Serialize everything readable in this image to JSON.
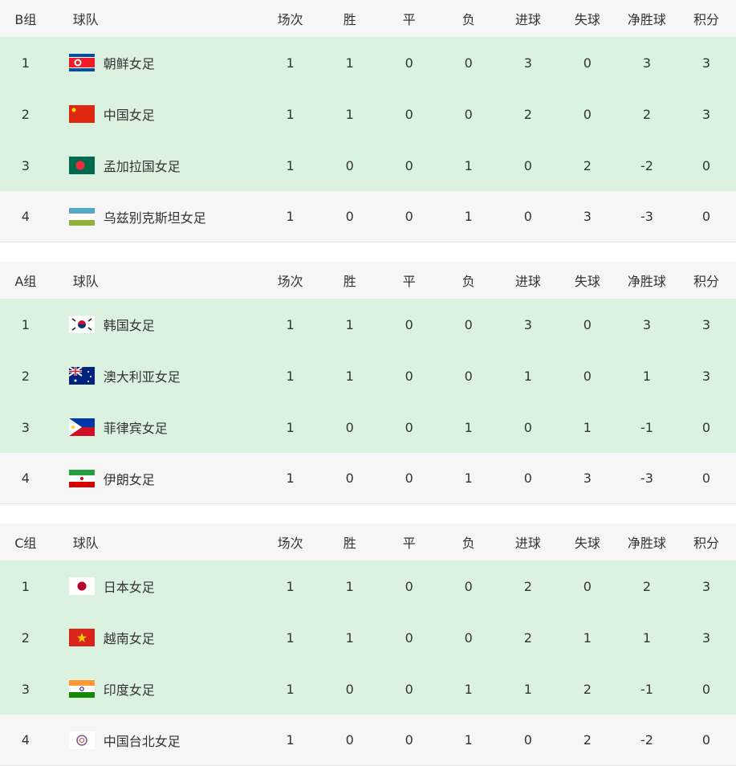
{
  "columns": [
    "球队",
    "场次",
    "胜",
    "平",
    "负",
    "进球",
    "失球",
    "净胜球",
    "积分"
  ],
  "colors": {
    "row_highlight": "#dcf2e0",
    "row_plain": "#f6f6f6",
    "header": "#f6f6f6"
  },
  "groups": [
    {
      "name": "B组",
      "rows": [
        {
          "rank": "1",
          "team": "朝鲜女足",
          "flag": "north-korea-flag",
          "stats": [
            "1",
            "1",
            "0",
            "0",
            "3",
            "0",
            "3",
            "3"
          ]
        },
        {
          "rank": "2",
          "team": "中国女足",
          "flag": "china-flag",
          "stats": [
            "1",
            "1",
            "0",
            "0",
            "2",
            "0",
            "2",
            "3"
          ]
        },
        {
          "rank": "3",
          "team": "孟加拉国女足",
          "flag": "bangladesh-flag",
          "stats": [
            "1",
            "0",
            "0",
            "1",
            "0",
            "2",
            "-2",
            "0"
          ]
        },
        {
          "rank": "4",
          "team": "乌兹别克斯坦女足",
          "flag": "uzbekistan-flag",
          "stats": [
            "1",
            "0",
            "0",
            "1",
            "0",
            "3",
            "-3",
            "0"
          ]
        }
      ]
    },
    {
      "name": "A组",
      "rows": [
        {
          "rank": "1",
          "team": "韩国女足",
          "flag": "south-korea-flag",
          "stats": [
            "1",
            "1",
            "0",
            "0",
            "3",
            "0",
            "3",
            "3"
          ]
        },
        {
          "rank": "2",
          "team": "澳大利亚女足",
          "flag": "australia-flag",
          "stats": [
            "1",
            "1",
            "0",
            "0",
            "1",
            "0",
            "1",
            "3"
          ]
        },
        {
          "rank": "3",
          "team": "菲律宾女足",
          "flag": "philippines-flag",
          "stats": [
            "1",
            "0",
            "0",
            "1",
            "0",
            "1",
            "-1",
            "0"
          ]
        },
        {
          "rank": "4",
          "team": "伊朗女足",
          "flag": "iran-flag",
          "stats": [
            "1",
            "0",
            "0",
            "1",
            "0",
            "3",
            "-3",
            "0"
          ]
        }
      ]
    },
    {
      "name": "C组",
      "rows": [
        {
          "rank": "1",
          "team": "日本女足",
          "flag": "japan-flag",
          "stats": [
            "1",
            "1",
            "0",
            "0",
            "2",
            "0",
            "2",
            "3"
          ]
        },
        {
          "rank": "2",
          "team": "越南女足",
          "flag": "vietnam-flag",
          "stats": [
            "1",
            "1",
            "0",
            "0",
            "2",
            "1",
            "1",
            "3"
          ]
        },
        {
          "rank": "3",
          "team": "印度女足",
          "flag": "india-flag",
          "stats": [
            "1",
            "0",
            "0",
            "1",
            "1",
            "2",
            "-1",
            "0"
          ]
        },
        {
          "rank": "4",
          "team": "中国台北女足",
          "flag": "chinese-taipei-flag",
          "stats": [
            "1",
            "0",
            "0",
            "1",
            "0",
            "2",
            "-2",
            "0"
          ]
        }
      ]
    }
  ]
}
